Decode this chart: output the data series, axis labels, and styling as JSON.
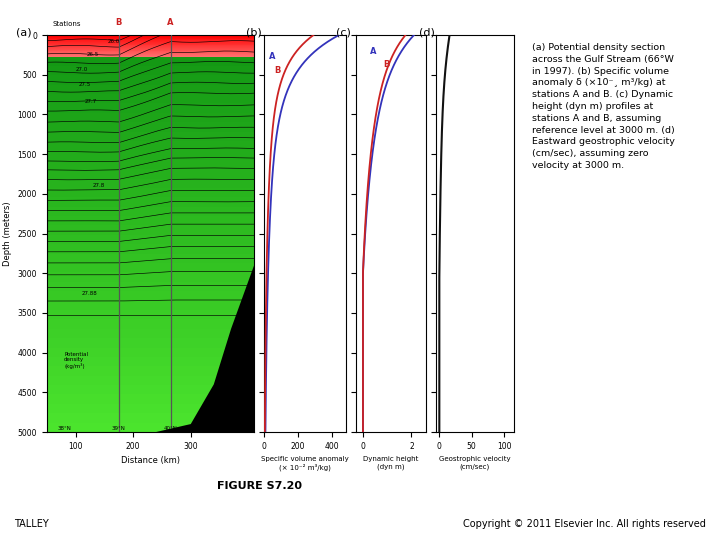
{
  "fig_width": 7.2,
  "fig_height": 5.4,
  "dpi": 100,
  "background_color": "#ffffff",
  "panel_a": {
    "label": "(a)",
    "xlabel": "Distance (km)",
    "ylabel": "Depth (meters)",
    "xlim": [
      50,
      410
    ],
    "ylim": [
      5000,
      0
    ],
    "xticks": [
      100,
      200,
      300
    ],
    "yticks": [
      0,
      500,
      1000,
      1500,
      2000,
      2500,
      3000,
      3500,
      4000,
      4500,
      5000
    ],
    "station_B_x": 175,
    "station_A_x": 265,
    "red_depth": 270,
    "green_bg": "#44bb44",
    "red_top": "#ff0000",
    "red_bot": "#ff8888"
  },
  "panel_b": {
    "label": "(b)",
    "xlabel_line1": "Specific volume anomaly",
    "xlabel_line2": "(× 10⁻² m³/kg)",
    "xlim": [
      0,
      480
    ],
    "ylim": [
      5000,
      0
    ],
    "xticks": [
      0,
      200,
      400
    ],
    "curve_A_color": "#3333bb",
    "curve_B_color": "#cc2222",
    "curve_A_label": "A",
    "curve_B_label": "B"
  },
  "panel_c": {
    "label": "(c)",
    "xlabel_line1": "Dynamic height",
    "xlabel_line2": "(dyn m)",
    "xlim": [
      -0.3,
      2.6
    ],
    "ylim": [
      5000,
      0
    ],
    "xticks": [
      0,
      2
    ],
    "curve_A_color": "#3333bb",
    "curve_B_color": "#cc2222",
    "curve_A_label": "A",
    "curve_B_label": "B"
  },
  "panel_d": {
    "label": "(d)",
    "xlabel_line1": "Geostrophic velocity",
    "xlabel_line2": "(cm/sec)",
    "xlim": [
      -5,
      115
    ],
    "ylim": [
      5000,
      0
    ],
    "xticks": [
      0,
      50,
      100
    ],
    "curve_color": "#111111"
  },
  "caption_lines": [
    "(a) Potential density section",
    "across the Gulf Stream (66°W",
    "in 1997). (b) Specific volume",
    "anomaly δ (×10⁻¸ m³/kg) at",
    "stations A and B. (c) Dynamic",
    "height (dyn m) profiles at",
    "stations A and B, assuming",
    "reference level at 3000 m. (d)",
    "Eastward geostrophic velocity",
    "(cm/sec), assuming zero",
    "velocity at 3000 m."
  ],
  "figure_label": "FIGURE S7.20",
  "left_label": "TALLEY",
  "right_label": "Copyright © 2011 Elsevier Inc. All rights reserved"
}
